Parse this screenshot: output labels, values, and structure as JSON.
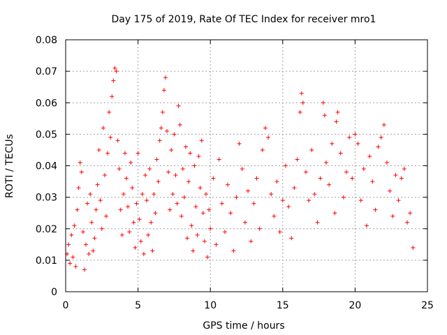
{
  "chart_data": {
    "type": "scatter",
    "title": "Day 175 of 2019, Rate Of TEC Index for receiver mro1",
    "xlabel": "GPS time / hours",
    "ylabel": "ROTI / TECUs",
    "xlim": [
      0,
      25
    ],
    "ylim": [
      0,
      0.08
    ],
    "x_ticks": [
      0,
      5,
      10,
      15,
      20,
      25
    ],
    "x_tick_labels": [
      "0",
      "5",
      "10",
      "15",
      "20",
      "25"
    ],
    "y_ticks": [
      0,
      0.01,
      0.02,
      0.03,
      0.04,
      0.05,
      0.06,
      0.07,
      0.08
    ],
    "y_tick_labels": [
      "0",
      "0.01",
      "0.02",
      "0.03",
      "0.04",
      "0.05",
      "0.06",
      "0.07",
      "0.08"
    ],
    "grid": true,
    "marker": "+",
    "color": "#ff0000",
    "series": [
      {
        "name": "ROTI",
        "points": [
          [
            0.1,
            0.012
          ],
          [
            0.2,
            0.015
          ],
          [
            0.3,
            0.009
          ],
          [
            0.4,
            0.018
          ],
          [
            0.5,
            0.011
          ],
          [
            0.6,
            0.021
          ],
          [
            0.7,
            0.008
          ],
          [
            0.8,
            0.026
          ],
          [
            0.9,
            0.033
          ],
          [
            1.0,
            0.041
          ],
          [
            1.1,
            0.038
          ],
          [
            1.2,
            0.019
          ],
          [
            1.3,
            0.007
          ],
          [
            1.4,
            0.015
          ],
          [
            1.5,
            0.028
          ],
          [
            1.6,
            0.012
          ],
          [
            1.7,
            0.031
          ],
          [
            1.8,
            0.022
          ],
          [
            1.9,
            0.013
          ],
          [
            2.0,
            0.017
          ],
          [
            2.1,
            0.026
          ],
          [
            2.2,
            0.034
          ],
          [
            2.3,
            0.045
          ],
          [
            2.4,
            0.029
          ],
          [
            2.5,
            0.02
          ],
          [
            2.6,
            0.052
          ],
          [
            2.7,
            0.037
          ],
          [
            2.8,
            0.024
          ],
          [
            2.9,
            0.044
          ],
          [
            3.0,
            0.057
          ],
          [
            3.1,
            0.049
          ],
          [
            3.2,
            0.062
          ],
          [
            3.3,
            0.067
          ],
          [
            3.4,
            0.071
          ],
          [
            3.5,
            0.07
          ],
          [
            3.6,
            0.048
          ],
          [
            3.7,
            0.039
          ],
          [
            3.8,
            0.026
          ],
          [
            3.9,
            0.018
          ],
          [
            4.0,
            0.031
          ],
          [
            4.1,
            0.044
          ],
          [
            4.2,
            0.036
          ],
          [
            4.3,
            0.027
          ],
          [
            4.4,
            0.019
          ],
          [
            4.5,
            0.041
          ],
          [
            4.6,
            0.033
          ],
          [
            4.7,
            0.022
          ],
          [
            4.8,
            0.014
          ],
          [
            4.9,
            0.028
          ],
          [
            5.0,
            0.044
          ],
          [
            5.1,
            0.023
          ],
          [
            5.2,
            0.016
          ],
          [
            5.3,
            0.031
          ],
          [
            5.4,
            0.012
          ],
          [
            5.5,
            0.037
          ],
          [
            5.6,
            0.029
          ],
          [
            5.7,
            0.018
          ],
          [
            5.8,
            0.039
          ],
          [
            5.9,
            0.022
          ],
          [
            6.0,
            0.013
          ],
          [
            6.1,
            0.031
          ],
          [
            6.2,
            0.025
          ],
          [
            6.3,
            0.042
          ],
          [
            6.4,
            0.035
          ],
          [
            6.5,
            0.048
          ],
          [
            6.6,
            0.052
          ],
          [
            6.7,
            0.057
          ],
          [
            6.8,
            0.064
          ],
          [
            6.9,
            0.068
          ],
          [
            7.0,
            0.051
          ],
          [
            7.1,
            0.038
          ],
          [
            7.2,
            0.026
          ],
          [
            7.3,
            0.045
          ],
          [
            7.4,
            0.031
          ],
          [
            7.5,
            0.05
          ],
          [
            7.6,
            0.037
          ],
          [
            7.7,
            0.028
          ],
          [
            7.8,
            0.059
          ],
          [
            7.9,
            0.053
          ],
          [
            8.0,
            0.024
          ],
          [
            8.1,
            0.039
          ],
          [
            8.2,
            0.03
          ],
          [
            8.3,
            0.046
          ],
          [
            8.4,
            0.017
          ],
          [
            8.5,
            0.035
          ],
          [
            8.6,
            0.044
          ],
          [
            8.7,
            0.021
          ],
          [
            8.8,
            0.013
          ],
          [
            8.9,
            0.04
          ],
          [
            9.0,
            0.027
          ],
          [
            9.1,
            0.018
          ],
          [
            9.2,
            0.043
          ],
          [
            9.3,
            0.033
          ],
          [
            9.4,
            0.048
          ],
          [
            9.5,
            0.025
          ],
          [
            9.6,
            0.016
          ],
          [
            9.7,
            0.031
          ],
          [
            9.8,
            0.011
          ],
          [
            9.9,
            0.026
          ],
          [
            10.0,
            0.02
          ],
          [
            10.2,
            0.036
          ],
          [
            10.4,
            0.015
          ],
          [
            10.6,
            0.042
          ],
          [
            10.8,
            0.028
          ],
          [
            11.0,
            0.019
          ],
          [
            11.2,
            0.034
          ],
          [
            11.4,
            0.025
          ],
          [
            11.6,
            0.013
          ],
          [
            11.8,
            0.03
          ],
          [
            12.0,
            0.047
          ],
          [
            12.2,
            0.039
          ],
          [
            12.4,
            0.022
          ],
          [
            12.6,
            0.032
          ],
          [
            12.8,
            0.016
          ],
          [
            13.0,
            0.028
          ],
          [
            13.2,
            0.036
          ],
          [
            13.4,
            0.02
          ],
          [
            13.6,
            0.045
          ],
          [
            13.8,
            0.052
          ],
          [
            14.0,
            0.049
          ],
          [
            14.2,
            0.031
          ],
          [
            14.4,
            0.024
          ],
          [
            14.6,
            0.035
          ],
          [
            14.8,
            0.019
          ],
          [
            15.0,
            0.029
          ],
          [
            15.2,
            0.04
          ],
          [
            15.4,
            0.027
          ],
          [
            15.6,
            0.017
          ],
          [
            15.8,
            0.033
          ],
          [
            16.0,
            0.042
          ],
          [
            16.2,
            0.057
          ],
          [
            16.3,
            0.063
          ],
          [
            16.4,
            0.06
          ],
          [
            16.6,
            0.038
          ],
          [
            16.8,
            0.029
          ],
          [
            17.0,
            0.045
          ],
          [
            17.2,
            0.031
          ],
          [
            17.4,
            0.022
          ],
          [
            17.6,
            0.036
          ],
          [
            17.8,
            0.06
          ],
          [
            17.9,
            0.056
          ],
          [
            18.0,
            0.041
          ],
          [
            18.2,
            0.034
          ],
          [
            18.4,
            0.047
          ],
          [
            18.6,
            0.025
          ],
          [
            18.7,
            0.054
          ],
          [
            18.8,
            0.057
          ],
          [
            19.0,
            0.044
          ],
          [
            19.2,
            0.03
          ],
          [
            19.4,
            0.038
          ],
          [
            19.6,
            0.049
          ],
          [
            19.8,
            0.036
          ],
          [
            20.0,
            0.05
          ],
          [
            20.2,
            0.047
          ],
          [
            20.4,
            0.029
          ],
          [
            20.6,
            0.039
          ],
          [
            20.8,
            0.021
          ],
          [
            21.0,
            0.043
          ],
          [
            21.2,
            0.035
          ],
          [
            21.4,
            0.026
          ],
          [
            21.6,
            0.046
          ],
          [
            21.8,
            0.049
          ],
          [
            22.0,
            0.053
          ],
          [
            22.2,
            0.041
          ],
          [
            22.4,
            0.032
          ],
          [
            22.6,
            0.024
          ],
          [
            22.8,
            0.037
          ],
          [
            23.0,
            0.029
          ],
          [
            23.2,
            0.036
          ],
          [
            23.4,
            0.039
          ],
          [
            23.6,
            0.022
          ],
          [
            23.8,
            0.025
          ],
          [
            24.0,
            0.014
          ]
        ]
      }
    ]
  }
}
